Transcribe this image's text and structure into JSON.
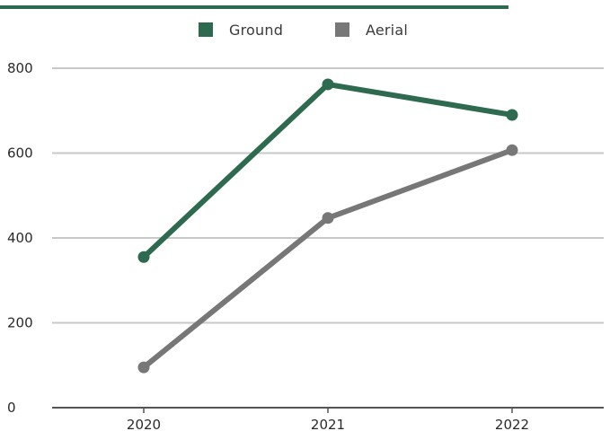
{
  "colors": {
    "ground": "#2d6a4f",
    "aerial": "#777777",
    "grid": "#c8c8c8",
    "axis": "#555555",
    "top_rule": "#2d6a4f"
  },
  "legend": {
    "ground_label": "Ground",
    "aerial_label": "Aerial",
    "placement": "top-center"
  },
  "chart_data": {
    "type": "line",
    "title": "",
    "xlabel": "",
    "ylabel": "",
    "categories": [
      "2020",
      "2021",
      "2022"
    ],
    "series": [
      {
        "name": "Ground",
        "values": [
          355,
          762,
          690
        ],
        "color": "#2d6a4f"
      },
      {
        "name": "Aerial",
        "values": [
          95,
          447,
          607
        ],
        "color": "#777777"
      }
    ],
    "ylim": [
      0,
      800
    ],
    "yticks": [
      0,
      200,
      400,
      600,
      800
    ],
    "grid": true
  }
}
